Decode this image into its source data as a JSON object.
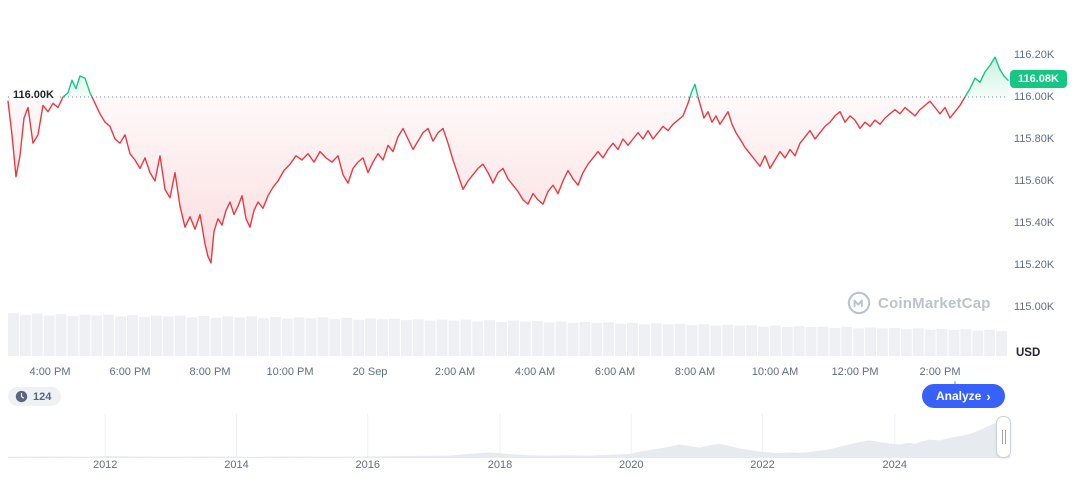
{
  "chart": {
    "baseline_label": "116.00K",
    "current_price_label": "116.08K",
    "currency_label": "USD",
    "watermark": "CoinMarketCap"
  },
  "controls": {
    "history_count": "124",
    "analyze_label": "Analyze",
    "analyze_chevron": "›"
  },
  "colors": {
    "up": "#16c784",
    "down": "#ea3943",
    "accent": "#3861fb",
    "volume": "#eef0f4",
    "nav_area": "#e7ebf0"
  },
  "chart_data": {
    "type": "line",
    "title": "",
    "ylabel": "USD",
    "baseline": 116.0,
    "ylim": [
      115.0,
      116.25
    ],
    "grid": false,
    "y_ticks": [
      {
        "label": "116.20K",
        "value": 116.2
      },
      {
        "label": "116.00K",
        "value": 116.0
      },
      {
        "label": "115.80K",
        "value": 115.8
      },
      {
        "label": "115.60K",
        "value": 115.6
      },
      {
        "label": "115.40K",
        "value": 115.4
      },
      {
        "label": "115.20K",
        "value": 115.2
      },
      {
        "label": "115.00K",
        "value": 115.0
      }
    ],
    "x_ticks": [
      {
        "label": "4:00 PM",
        "f": 0.042
      },
      {
        "label": "6:00 PM",
        "f": 0.122
      },
      {
        "label": "8:00 PM",
        "f": 0.202
      },
      {
        "label": "10:00 PM",
        "f": 0.282
      },
      {
        "label": "20 Sep",
        "f": 0.362
      },
      {
        "label": "2:00 AM",
        "f": 0.447
      },
      {
        "label": "4:00 AM",
        "f": 0.527
      },
      {
        "label": "6:00 AM",
        "f": 0.607
      },
      {
        "label": "8:00 AM",
        "f": 0.687
      },
      {
        "label": "10:00 AM",
        "f": 0.767
      },
      {
        "label": "12:00 PM",
        "f": 0.847
      },
      {
        "label": "2:00 PM",
        "f": 0.932
      }
    ],
    "points": [
      [
        0.0,
        115.98
      ],
      [
        0.004,
        115.82
      ],
      [
        0.008,
        115.62
      ],
      [
        0.012,
        115.72
      ],
      [
        0.016,
        115.9
      ],
      [
        0.02,
        115.95
      ],
      [
        0.025,
        115.78
      ],
      [
        0.03,
        115.82
      ],
      [
        0.035,
        115.96
      ],
      [
        0.04,
        115.93
      ],
      [
        0.045,
        115.97
      ],
      [
        0.05,
        115.95
      ],
      [
        0.055,
        116.0
      ],
      [
        0.06,
        116.02
      ],
      [
        0.064,
        116.08
      ],
      [
        0.068,
        116.04
      ],
      [
        0.072,
        116.1
      ],
      [
        0.077,
        116.09
      ],
      [
        0.082,
        116.02
      ],
      [
        0.087,
        115.97
      ],
      [
        0.092,
        115.92
      ],
      [
        0.097,
        115.88
      ],
      [
        0.102,
        115.86
      ],
      [
        0.107,
        115.8
      ],
      [
        0.112,
        115.78
      ],
      [
        0.117,
        115.82
      ],
      [
        0.122,
        115.73
      ],
      [
        0.127,
        115.7
      ],
      [
        0.132,
        115.66
      ],
      [
        0.137,
        115.71
      ],
      [
        0.142,
        115.64
      ],
      [
        0.147,
        115.6
      ],
      [
        0.152,
        115.72
      ],
      [
        0.157,
        115.56
      ],
      [
        0.162,
        115.52
      ],
      [
        0.167,
        115.64
      ],
      [
        0.172,
        115.48
      ],
      [
        0.177,
        115.38
      ],
      [
        0.182,
        115.43
      ],
      [
        0.187,
        115.37
      ],
      [
        0.192,
        115.44
      ],
      [
        0.197,
        115.3
      ],
      [
        0.2,
        115.24
      ],
      [
        0.203,
        115.21
      ],
      [
        0.206,
        115.36
      ],
      [
        0.21,
        115.42
      ],
      [
        0.214,
        115.39
      ],
      [
        0.218,
        115.46
      ],
      [
        0.222,
        115.5
      ],
      [
        0.226,
        115.44
      ],
      [
        0.23,
        115.48
      ],
      [
        0.234,
        115.53
      ],
      [
        0.238,
        115.42
      ],
      [
        0.242,
        115.38
      ],
      [
        0.246,
        115.46
      ],
      [
        0.25,
        115.5
      ],
      [
        0.255,
        115.47
      ],
      [
        0.26,
        115.53
      ],
      [
        0.265,
        115.57
      ],
      [
        0.27,
        115.6
      ],
      [
        0.276,
        115.65
      ],
      [
        0.282,
        115.68
      ],
      [
        0.288,
        115.72
      ],
      [
        0.294,
        115.7
      ],
      [
        0.3,
        115.73
      ],
      [
        0.306,
        115.69
      ],
      [
        0.312,
        115.74
      ],
      [
        0.318,
        115.71
      ],
      [
        0.324,
        115.69
      ],
      [
        0.33,
        115.72
      ],
      [
        0.335,
        115.63
      ],
      [
        0.34,
        115.59
      ],
      [
        0.345,
        115.66
      ],
      [
        0.35,
        115.69
      ],
      [
        0.355,
        115.71
      ],
      [
        0.36,
        115.64
      ],
      [
        0.365,
        115.69
      ],
      [
        0.37,
        115.73
      ],
      [
        0.375,
        115.7
      ],
      [
        0.38,
        115.77
      ],
      [
        0.385,
        115.74
      ],
      [
        0.39,
        115.81
      ],
      [
        0.395,
        115.85
      ],
      [
        0.4,
        115.8
      ],
      [
        0.405,
        115.75
      ],
      [
        0.41,
        115.79
      ],
      [
        0.415,
        115.83
      ],
      [
        0.42,
        115.85
      ],
      [
        0.425,
        115.79
      ],
      [
        0.43,
        115.83
      ],
      [
        0.435,
        115.85
      ],
      [
        0.44,
        115.78
      ],
      [
        0.445,
        115.7
      ],
      [
        0.45,
        115.63
      ],
      [
        0.455,
        115.56
      ],
      [
        0.46,
        115.6
      ],
      [
        0.465,
        115.63
      ],
      [
        0.47,
        115.66
      ],
      [
        0.475,
        115.68
      ],
      [
        0.48,
        115.64
      ],
      [
        0.485,
        115.59
      ],
      [
        0.49,
        115.64
      ],
      [
        0.495,
        115.66
      ],
      [
        0.5,
        115.61
      ],
      [
        0.505,
        115.58
      ],
      [
        0.51,
        115.55
      ],
      [
        0.515,
        115.51
      ],
      [
        0.52,
        115.49
      ],
      [
        0.525,
        115.54
      ],
      [
        0.53,
        115.51
      ],
      [
        0.535,
        115.49
      ],
      [
        0.54,
        115.55
      ],
      [
        0.545,
        115.58
      ],
      [
        0.55,
        115.54
      ],
      [
        0.555,
        115.6
      ],
      [
        0.56,
        115.65
      ],
      [
        0.565,
        115.61
      ],
      [
        0.57,
        115.58
      ],
      [
        0.575,
        115.64
      ],
      [
        0.58,
        115.68
      ],
      [
        0.585,
        115.71
      ],
      [
        0.59,
        115.74
      ],
      [
        0.595,
        115.71
      ],
      [
        0.6,
        115.75
      ],
      [
        0.605,
        115.78
      ],
      [
        0.61,
        115.75
      ],
      [
        0.615,
        115.8
      ],
      [
        0.62,
        115.77
      ],
      [
        0.625,
        115.8
      ],
      [
        0.63,
        115.83
      ],
      [
        0.635,
        115.8
      ],
      [
        0.64,
        115.84
      ],
      [
        0.645,
        115.8
      ],
      [
        0.65,
        115.83
      ],
      [
        0.655,
        115.86
      ],
      [
        0.66,
        115.84
      ],
      [
        0.665,
        115.87
      ],
      [
        0.67,
        115.89
      ],
      [
        0.675,
        115.91
      ],
      [
        0.68,
        115.97
      ],
      [
        0.684,
        116.03
      ],
      [
        0.687,
        116.06
      ],
      [
        0.69,
        116.0
      ],
      [
        0.693,
        115.95
      ],
      [
        0.696,
        115.9
      ],
      [
        0.7,
        115.93
      ],
      [
        0.704,
        115.88
      ],
      [
        0.708,
        115.91
      ],
      [
        0.712,
        115.87
      ],
      [
        0.716,
        115.9
      ],
      [
        0.72,
        115.93
      ],
      [
        0.724,
        115.87
      ],
      [
        0.728,
        115.83
      ],
      [
        0.732,
        115.8
      ],
      [
        0.737,
        115.76
      ],
      [
        0.742,
        115.73
      ],
      [
        0.747,
        115.7
      ],
      [
        0.752,
        115.67
      ],
      [
        0.757,
        115.72
      ],
      [
        0.762,
        115.66
      ],
      [
        0.767,
        115.7
      ],
      [
        0.772,
        115.74
      ],
      [
        0.777,
        115.71
      ],
      [
        0.782,
        115.75
      ],
      [
        0.787,
        115.72
      ],
      [
        0.792,
        115.78
      ],
      [
        0.797,
        115.81
      ],
      [
        0.802,
        115.84
      ],
      [
        0.807,
        115.8
      ],
      [
        0.812,
        115.83
      ],
      [
        0.817,
        115.86
      ],
      [
        0.822,
        115.88
      ],
      [
        0.827,
        115.91
      ],
      [
        0.832,
        115.93
      ],
      [
        0.837,
        115.88
      ],
      [
        0.842,
        115.91
      ],
      [
        0.847,
        115.89
      ],
      [
        0.852,
        115.85
      ],
      [
        0.857,
        115.88
      ],
      [
        0.862,
        115.86
      ],
      [
        0.867,
        115.89
      ],
      [
        0.872,
        115.87
      ],
      [
        0.877,
        115.9
      ],
      [
        0.882,
        115.92
      ],
      [
        0.887,
        115.94
      ],
      [
        0.892,
        115.92
      ],
      [
        0.897,
        115.95
      ],
      [
        0.902,
        115.93
      ],
      [
        0.907,
        115.91
      ],
      [
        0.912,
        115.94
      ],
      [
        0.917,
        115.96
      ],
      [
        0.922,
        115.98
      ],
      [
        0.927,
        115.95
      ],
      [
        0.932,
        115.92
      ],
      [
        0.937,
        115.95
      ],
      [
        0.942,
        115.9
      ],
      [
        0.947,
        115.93
      ],
      [
        0.952,
        115.96
      ],
      [
        0.957,
        116.0
      ],
      [
        0.962,
        116.04
      ],
      [
        0.967,
        116.09
      ],
      [
        0.972,
        116.07
      ],
      [
        0.977,
        116.12
      ],
      [
        0.982,
        116.15
      ],
      [
        0.987,
        116.19
      ],
      [
        0.992,
        116.13
      ],
      [
        0.996,
        116.1
      ],
      [
        1.0,
        116.08
      ]
    ],
    "volume_norm": [
      0.93,
      0.89,
      0.92,
      0.88,
      0.91,
      0.87,
      0.9,
      0.88,
      0.9,
      0.86,
      0.89,
      0.85,
      0.88,
      0.86,
      0.88,
      0.84,
      0.87,
      0.83,
      0.86,
      0.84,
      0.86,
      0.82,
      0.85,
      0.81,
      0.84,
      0.82,
      0.84,
      0.8,
      0.83,
      0.79,
      0.82,
      0.8,
      0.81,
      0.78,
      0.8,
      0.77,
      0.79,
      0.77,
      0.79,
      0.75,
      0.78,
      0.74,
      0.77,
      0.75,
      0.76,
      0.73,
      0.75,
      0.72,
      0.74,
      0.72,
      0.73,
      0.7,
      0.72,
      0.69,
      0.71,
      0.69,
      0.7,
      0.67,
      0.69,
      0.66,
      0.68,
      0.66,
      0.67,
      0.64,
      0.66,
      0.63,
      0.65,
      0.63,
      0.64,
      0.61,
      0.63,
      0.6,
      0.62,
      0.6,
      0.61,
      0.58,
      0.6,
      0.57,
      0.59,
      0.57,
      0.58,
      0.55,
      0.57,
      0.54
    ],
    "navigator": {
      "years": [
        {
          "label": "2012",
          "f": 0.097
        },
        {
          "label": "2014",
          "f": 0.228
        },
        {
          "label": "2016",
          "f": 0.359
        },
        {
          "label": "2018",
          "f": 0.491
        },
        {
          "label": "2020",
          "f": 0.622
        },
        {
          "label": "2022",
          "f": 0.753
        },
        {
          "label": "2024",
          "f": 0.885
        }
      ],
      "points": [
        [
          0.0,
          0.03
        ],
        [
          0.04,
          0.04
        ],
        [
          0.08,
          0.03
        ],
        [
          0.1,
          0.05
        ],
        [
          0.12,
          0.04
        ],
        [
          0.16,
          0.03
        ],
        [
          0.2,
          0.04
        ],
        [
          0.24,
          0.03
        ],
        [
          0.28,
          0.04
        ],
        [
          0.32,
          0.03
        ],
        [
          0.36,
          0.04
        ],
        [
          0.4,
          0.05
        ],
        [
          0.44,
          0.06
        ],
        [
          0.46,
          0.1
        ],
        [
          0.48,
          0.14
        ],
        [
          0.5,
          0.1
        ],
        [
          0.52,
          0.07
        ],
        [
          0.54,
          0.06
        ],
        [
          0.56,
          0.07
        ],
        [
          0.58,
          0.06
        ],
        [
          0.6,
          0.08
        ],
        [
          0.62,
          0.1
        ],
        [
          0.63,
          0.16
        ],
        [
          0.645,
          0.22
        ],
        [
          0.66,
          0.28
        ],
        [
          0.67,
          0.34
        ],
        [
          0.68,
          0.3
        ],
        [
          0.69,
          0.26
        ],
        [
          0.7,
          0.32
        ],
        [
          0.71,
          0.36
        ],
        [
          0.72,
          0.3
        ],
        [
          0.73,
          0.24
        ],
        [
          0.74,
          0.2
        ],
        [
          0.75,
          0.16
        ],
        [
          0.76,
          0.14
        ],
        [
          0.77,
          0.12
        ],
        [
          0.78,
          0.14
        ],
        [
          0.79,
          0.13
        ],
        [
          0.8,
          0.15
        ],
        [
          0.81,
          0.18
        ],
        [
          0.82,
          0.22
        ],
        [
          0.83,
          0.28
        ],
        [
          0.84,
          0.34
        ],
        [
          0.85,
          0.4
        ],
        [
          0.86,
          0.44
        ],
        [
          0.87,
          0.4
        ],
        [
          0.88,
          0.36
        ],
        [
          0.89,
          0.34
        ],
        [
          0.9,
          0.38
        ],
        [
          0.905,
          0.35
        ],
        [
          0.91,
          0.4
        ],
        [
          0.92,
          0.46
        ],
        [
          0.93,
          0.44
        ],
        [
          0.94,
          0.5
        ],
        [
          0.95,
          0.55
        ],
        [
          0.96,
          0.6
        ],
        [
          0.97,
          0.7
        ],
        [
          0.98,
          0.82
        ],
        [
          0.99,
          0.92
        ],
        [
          1.0,
          0.85
        ]
      ]
    }
  }
}
